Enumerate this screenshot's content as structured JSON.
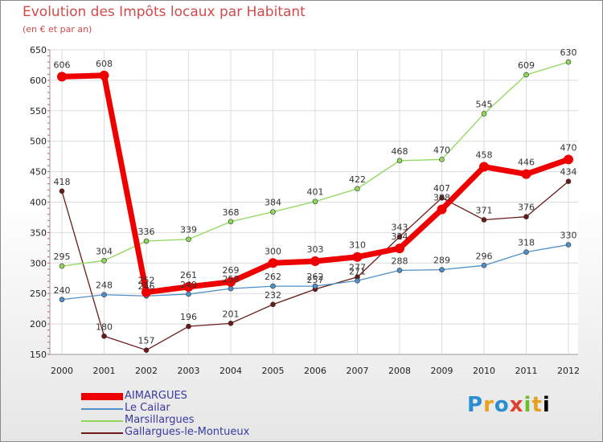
{
  "header": {
    "title": "Evolution des Impôts locaux par Habitant",
    "subtitle": "(en € et par an)"
  },
  "logo_text": "Proxiti",
  "chart_data": {
    "type": "line",
    "title": "Evolution des Impôts locaux par Habitant",
    "subtitle": "(en € et par an)",
    "xlabel": "",
    "ylabel": "",
    "x": [
      "2000",
      "2001",
      "2002",
      "2003",
      "2004",
      "2005",
      "2006",
      "2007",
      "2008",
      "2009",
      "2010",
      "2011",
      "2012"
    ],
    "ylim": [
      150,
      650
    ],
    "yticks": [
      150,
      200,
      250,
      300,
      350,
      400,
      450,
      500,
      550,
      600,
      650
    ],
    "grid": true,
    "legend_position": "bottom-left",
    "series": [
      {
        "name": "AIMARGUES",
        "color": "#ee0000",
        "values": [
          606,
          608,
          252,
          261,
          269,
          300,
          303,
          310,
          324,
          388,
          458,
          446,
          470
        ],
        "labels": [
          "606",
          "608",
          "252",
          "261",
          "269",
          "300",
          "303",
          "310",
          "324",
          "388",
          "458",
          "446",
          "470"
        ]
      },
      {
        "name": "Le Cailar",
        "color": "#4f8fc8",
        "values": [
          240,
          248,
          246,
          249,
          258,
          262,
          262,
          271,
          288,
          289,
          296,
          318,
          330
        ],
        "labels": [
          "240",
          "248",
          "246",
          "249",
          "258",
          "262",
          "262",
          "271",
          "288",
          "289",
          "296",
          "318",
          "330"
        ]
      },
      {
        "name": "Marsillargues",
        "color": "#8fd85a",
        "values": [
          295,
          304,
          336,
          339,
          368,
          384,
          401,
          422,
          468,
          470,
          545,
          609,
          630
        ],
        "labels": [
          "295",
          "304",
          "336",
          "339",
          "368",
          "384",
          "401",
          "422",
          "468",
          "470",
          "545",
          "609",
          "630"
        ]
      },
      {
        "name": "Gallargues-le-Montueux",
        "color": "#6b1a1a",
        "values": [
          418,
          180,
          157,
          196,
          201,
          232,
          257,
          277,
          343,
          407,
          371,
          376,
          434
        ],
        "labels": [
          "418",
          "180",
          "157",
          "196",
          "201",
          "232",
          "257",
          "277",
          "343",
          "407",
          "371",
          "376",
          "434"
        ]
      }
    ]
  }
}
